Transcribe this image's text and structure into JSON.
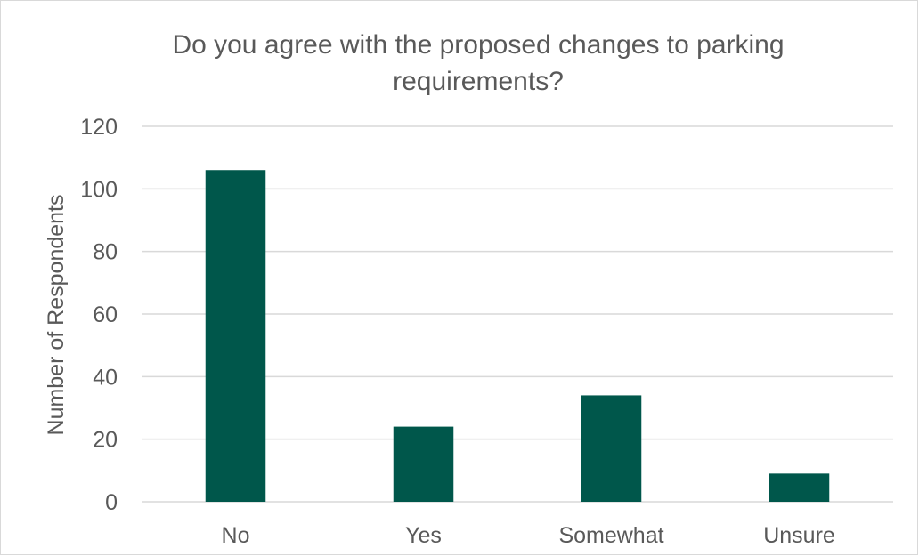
{
  "chart_data": {
    "type": "bar",
    "title_lines": [
      "Do you agree with the proposed changes to parking",
      "requirements?"
    ],
    "xlabel": "",
    "ylabel": "Number of Respondents",
    "categories": [
      "No",
      "Yes",
      "Somewhat",
      "Unsure"
    ],
    "values": [
      106,
      24,
      34,
      9
    ],
    "ylim": [
      0,
      120
    ],
    "yticks": [
      0,
      20,
      40,
      60,
      80,
      100,
      120
    ],
    "grid": true,
    "legend": "none",
    "colors": {
      "bar": "#00574B",
      "grid": "#d9d9d9",
      "text": "#595959"
    }
  }
}
